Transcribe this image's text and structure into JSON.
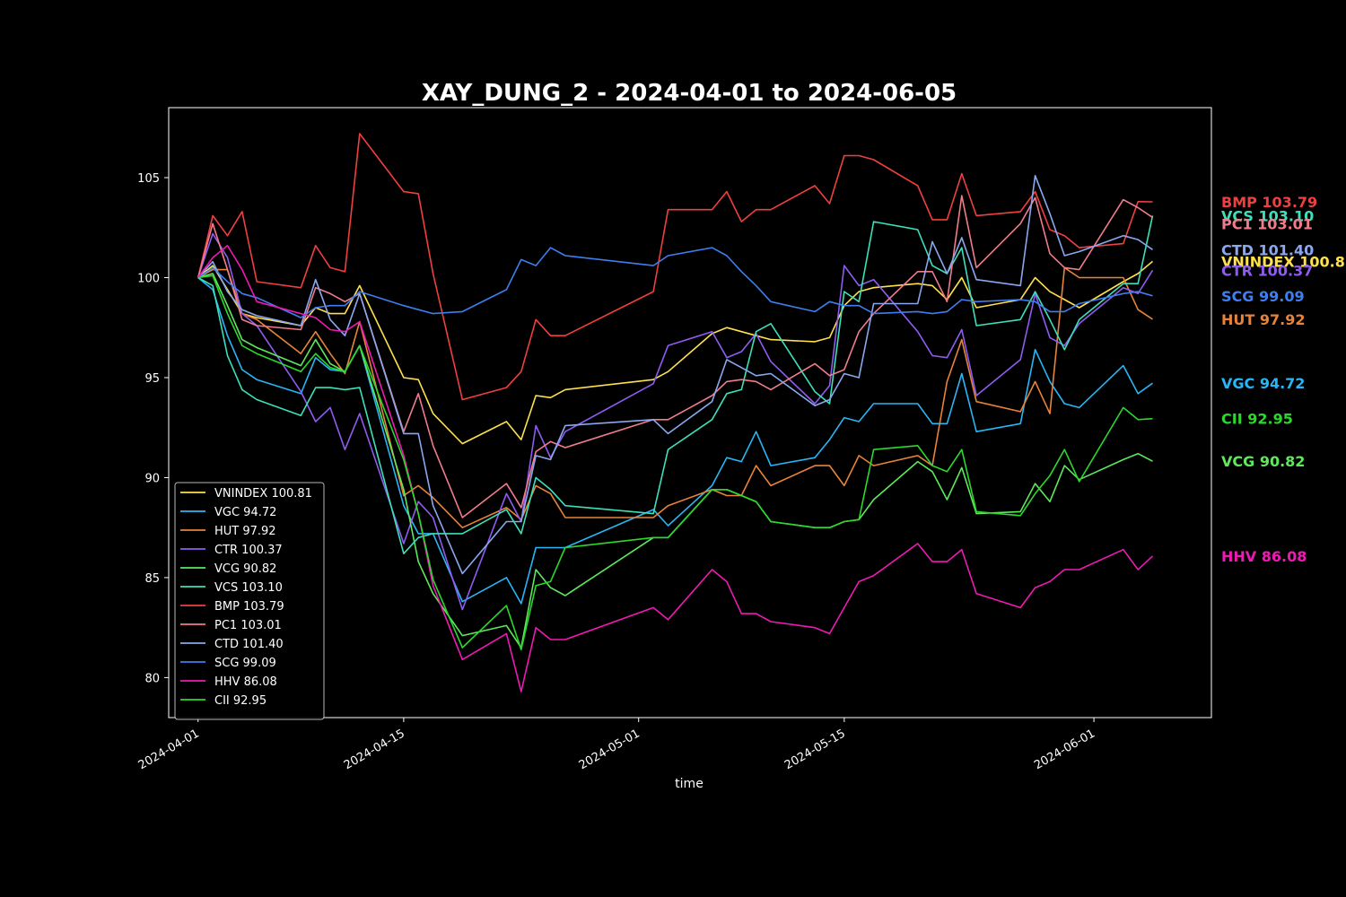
{
  "chart_data": {
    "type": "line",
    "title": "XAY_DUNG_2 - 2024-04-01 to 2024-06-05",
    "xlabel": "time",
    "ylabel": "",
    "xlim": [
      "2024-03-30",
      "2024-06-09"
    ],
    "ylim": [
      78,
      108.5
    ],
    "x_ticks": [
      "2024-04-01",
      "2024-04-15",
      "2024-05-01",
      "2024-05-15",
      "2024-06-01"
    ],
    "y_ticks": [
      80,
      85,
      90,
      95,
      100,
      105
    ],
    "grid": false,
    "legend_position": "lower-left",
    "dates": [
      "2024-04-01",
      "2024-04-02",
      "2024-04-03",
      "2024-04-04",
      "2024-04-05",
      "2024-04-08",
      "2024-04-09",
      "2024-04-10",
      "2024-04-11",
      "2024-04-12",
      "2024-04-15",
      "2024-04-16",
      "2024-04-17",
      "2024-04-19",
      "2024-04-22",
      "2024-04-23",
      "2024-04-24",
      "2024-04-25",
      "2024-04-26",
      "2024-05-02",
      "2024-05-03",
      "2024-05-06",
      "2024-05-07",
      "2024-05-08",
      "2024-05-09",
      "2024-05-10",
      "2024-05-13",
      "2024-05-14",
      "2024-05-15",
      "2024-05-16",
      "2024-05-17",
      "2024-05-20",
      "2024-05-21",
      "2024-05-22",
      "2024-05-23",
      "2024-05-24",
      "2024-05-27",
      "2024-05-28",
      "2024-05-29",
      "2024-05-30",
      "2024-05-31",
      "2024-06-03",
      "2024-06-04",
      "2024-06-05"
    ],
    "series": [
      {
        "name": "VNINDEX",
        "label": "VNINDEX 100.81",
        "color": "#ffe14d",
        "values": [
          100,
          100.6,
          99.4,
          98.2,
          98.0,
          97.6,
          98.5,
          98.2,
          98.2,
          99.6,
          95.0,
          94.9,
          93.2,
          91.7,
          92.8,
          91.9,
          94.1,
          94.0,
          94.4,
          94.9,
          95.3,
          97.2,
          97.5,
          97.3,
          97.1,
          96.9,
          96.8,
          97.0,
          98.6,
          99.3,
          99.5,
          99.7,
          99.6,
          98.9,
          100.0,
          98.5,
          98.9,
          100.0,
          99.3,
          98.9,
          98.5,
          99.8,
          100.2,
          100.81
        ]
      },
      {
        "name": "VGC",
        "label": "VGC 94.72",
        "color": "#29b6f6",
        "values": [
          100,
          99.4,
          97.1,
          95.4,
          94.9,
          94.2,
          96.0,
          95.4,
          95.3,
          96.6,
          88.6,
          87.2,
          87.2,
          83.8,
          85.0,
          83.7,
          86.5,
          86.5,
          86.5,
          88.4,
          87.6,
          89.6,
          91.0,
          90.8,
          92.3,
          90.6,
          91.0,
          91.9,
          93.0,
          92.8,
          93.7,
          93.7,
          92.7,
          92.7,
          95.2,
          92.3,
          92.7,
          96.4,
          94.8,
          93.7,
          93.5,
          95.6,
          94.2,
          94.72
        ]
      },
      {
        "name": "HUT",
        "label": "HUT 97.92",
        "color": "#e8833a",
        "values": [
          100,
          100.4,
          100.4,
          98.2,
          97.9,
          96.2,
          97.3,
          96.2,
          95.2,
          97.8,
          89.1,
          89.6,
          89.0,
          87.5,
          88.5,
          87.9,
          89.6,
          89.2,
          88.0,
          88.0,
          88.6,
          89.4,
          89.1,
          89.1,
          90.6,
          89.6,
          90.6,
          90.6,
          89.6,
          91.1,
          90.6,
          91.1,
          90.6,
          94.8,
          96.9,
          93.8,
          93.3,
          94.8,
          93.2,
          100.5,
          100.0,
          100.0,
          98.4,
          97.92
        ]
      },
      {
        "name": "CTR",
        "label": "CTR 100.37",
        "color": "#8f5cf0",
        "values": [
          100,
          102.2,
          101.0,
          98.2,
          97.6,
          94.3,
          92.8,
          93.5,
          91.4,
          93.2,
          86.7,
          88.8,
          88.0,
          83.4,
          89.2,
          87.8,
          92.6,
          91.0,
          92.3,
          94.7,
          96.6,
          97.3,
          96.0,
          96.3,
          97.2,
          95.8,
          93.7,
          94.6,
          100.6,
          99.6,
          99.9,
          97.3,
          96.1,
          96.0,
          97.4,
          94.1,
          95.9,
          99.2,
          97.0,
          96.6,
          97.7,
          99.5,
          99.2,
          100.37
        ]
      },
      {
        "name": "VCG",
        "label": "VCG 90.82",
        "color": "#5ee85e",
        "values": [
          100,
          100.2,
          98.6,
          96.9,
          96.5,
          95.6,
          96.9,
          95.7,
          95.3,
          96.6,
          89.4,
          85.8,
          84.2,
          82.1,
          82.6,
          81.5,
          85.4,
          84.5,
          84.1,
          87.0,
          87.0,
          89.4,
          89.4,
          89.1,
          88.8,
          87.8,
          87.5,
          87.5,
          87.8,
          87.9,
          88.9,
          90.8,
          90.3,
          88.9,
          90.5,
          88.2,
          88.3,
          89.7,
          88.8,
          90.6,
          89.9,
          90.9,
          91.2,
          90.82
        ]
      },
      {
        "name": "VCS",
        "label": "VCS 103.10",
        "color": "#3de0b9",
        "values": [
          100,
          99.6,
          96.1,
          94.4,
          93.9,
          93.1,
          94.5,
          94.5,
          94.4,
          94.5,
          86.2,
          87.0,
          87.2,
          87.2,
          88.4,
          87.2,
          90.0,
          89.4,
          88.6,
          88.2,
          91.4,
          92.9,
          94.2,
          94.4,
          97.3,
          97.7,
          94.3,
          93.7,
          99.3,
          98.8,
          102.8,
          102.4,
          100.6,
          100.2,
          101.5,
          97.6,
          97.9,
          99.3,
          97.9,
          96.4,
          97.9,
          99.7,
          99.7,
          103.1
        ]
      },
      {
        "name": "BMP",
        "label": "BMP 103.79",
        "color": "#ef4040",
        "values": [
          100,
          103.1,
          102.1,
          103.3,
          99.8,
          99.5,
          101.6,
          100.5,
          100.3,
          107.2,
          104.3,
          104.2,
          100.2,
          93.9,
          94.5,
          95.3,
          97.9,
          97.1,
          97.1,
          99.3,
          103.4,
          103.4,
          104.3,
          102.8,
          103.4,
          103.4,
          104.6,
          103.7,
          106.1,
          106.1,
          105.9,
          104.6,
          102.9,
          102.9,
          105.2,
          103.1,
          103.3,
          104.3,
          102.4,
          102.1,
          101.5,
          101.7,
          103.8,
          103.79
        ]
      },
      {
        "name": "PC1",
        "label": "PC1 103.01",
        "color": "#f07c8c",
        "values": [
          100,
          102.7,
          100.4,
          97.9,
          97.6,
          97.4,
          99.5,
          99.2,
          98.8,
          99.2,
          92.3,
          94.2,
          91.6,
          88.0,
          89.7,
          88.5,
          91.3,
          91.8,
          91.5,
          92.9,
          92.9,
          94.1,
          94.8,
          94.9,
          94.8,
          94.4,
          95.7,
          95.1,
          95.4,
          97.3,
          98.2,
          100.3,
          100.3,
          98.8,
          104.1,
          100.5,
          102.7,
          104.0,
          101.2,
          100.5,
          100.4,
          103.9,
          103.5,
          103.01
        ]
      },
      {
        "name": "CTD",
        "label": "CTD 101.40",
        "color": "#8aa8ee",
        "values": [
          100,
          100.8,
          99.3,
          98.4,
          98.1,
          97.6,
          99.9,
          97.9,
          97.1,
          99.2,
          92.2,
          92.2,
          88.6,
          85.2,
          87.8,
          87.8,
          91.1,
          90.9,
          92.6,
          92.9,
          92.2,
          93.8,
          95.9,
          95.5,
          95.1,
          95.2,
          93.6,
          93.9,
          95.2,
          95.0,
          98.7,
          98.7,
          101.8,
          100.2,
          102.0,
          99.9,
          99.6,
          105.1,
          103.2,
          101.1,
          101.3,
          102.1,
          101.9,
          101.4
        ]
      },
      {
        "name": "SCG",
        "label": "SCG 99.09",
        "color": "#3f7ef0",
        "values": [
          100,
          100.5,
          99.8,
          99.2,
          99.0,
          98.0,
          98.5,
          98.6,
          98.6,
          99.3,
          98.6,
          98.4,
          98.2,
          98.3,
          99.4,
          100.9,
          100.6,
          101.5,
          101.1,
          100.6,
          101.1,
          101.5,
          101.1,
          100.3,
          99.6,
          98.8,
          98.3,
          98.8,
          98.6,
          98.6,
          98.2,
          98.3,
          98.2,
          98.3,
          98.9,
          98.8,
          98.9,
          98.8,
          98.3,
          98.3,
          98.7,
          99.2,
          99.3,
          99.09
        ]
      },
      {
        "name": "HHV",
        "label": "HHV 86.08",
        "color": "#ee1ab4",
        "values": [
          100,
          101.0,
          101.6,
          100.4,
          98.8,
          98.2,
          98.0,
          97.4,
          97.3,
          97.8,
          91.1,
          88.2,
          84.6,
          80.9,
          82.2,
          79.3,
          82.5,
          81.9,
          81.9,
          83.5,
          82.9,
          85.4,
          84.8,
          83.2,
          83.2,
          82.8,
          82.5,
          82.2,
          83.5,
          84.8,
          85.1,
          86.7,
          85.8,
          85.8,
          86.4,
          84.2,
          83.5,
          84.5,
          84.8,
          85.4,
          85.4,
          86.4,
          85.4,
          86.08
        ]
      },
      {
        "name": "CII",
        "label": "CII 92.95",
        "color": "#2cd82c",
        "values": [
          100,
          100.1,
          98.2,
          96.6,
          96.2,
          95.3,
          96.2,
          95.5,
          95.3,
          96.6,
          90.9,
          88.2,
          84.9,
          81.5,
          83.6,
          81.4,
          84.6,
          84.8,
          86.5,
          87.0,
          87.0,
          89.4,
          89.4,
          89.1,
          88.8,
          87.8,
          87.5,
          87.5,
          87.8,
          87.9,
          91.4,
          91.6,
          90.6,
          90.3,
          91.4,
          88.3,
          88.1,
          89.2,
          90.1,
          91.4,
          89.8,
          93.5,
          92.9,
          92.95
        ]
      }
    ]
  }
}
